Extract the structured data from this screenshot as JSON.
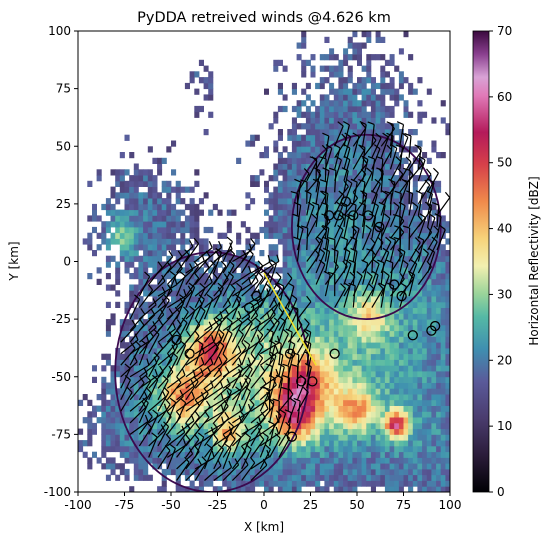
{
  "chart_data": {
    "type": "heatmap",
    "title": "PyDDA retreived winds @4.626 km",
    "xlabel": "X [km]",
    "ylabel": "Y [km]",
    "xlim": [
      -100,
      100
    ],
    "ylim": [
      -100,
      100
    ],
    "x_ticks": [
      -100,
      -75,
      -50,
      -25,
      0,
      25,
      50,
      75,
      100
    ],
    "y_ticks": [
      -100,
      -75,
      -50,
      -25,
      0,
      25,
      50,
      75,
      100
    ],
    "colorbar": {
      "label": "Horizontal Reflectivity [dBZ]",
      "range": [
        0,
        70
      ],
      "ticks": [
        0,
        10,
        20,
        30,
        40,
        50,
        60,
        70
      ],
      "colormap": "Spectral_r-like (black to purple, teal, yellow, red, magenta, dark purple)"
    },
    "overlays": {
      "dual_doppler_lobes_color": "#3b0a4f",
      "lobes": [
        {
          "center": [
            55,
            15
          ],
          "radius": 40
        },
        {
          "center": [
            -28,
            -48
          ],
          "radius": 52
        }
      ],
      "baseline_color": "#f2e12a",
      "baseline": [
        [
          0,
          -5
        ],
        [
          28,
          -45
        ]
      ],
      "barbs_color": "#000000",
      "calm_markers": [
        [
          44,
          26
        ],
        [
          48,
          20
        ],
        [
          40,
          20
        ],
        [
          35,
          20
        ],
        [
          56,
          20
        ],
        [
          62,
          15
        ],
        [
          70,
          -10
        ],
        [
          74,
          -15
        ],
        [
          90,
          -30
        ],
        [
          92,
          -28
        ],
        [
          80,
          -32
        ],
        [
          -47,
          -34
        ],
        [
          -40,
          -40
        ],
        [
          14,
          -40
        ],
        [
          38,
          -40
        ],
        [
          -8,
          -20
        ],
        [
          -4,
          -15
        ],
        [
          20,
          -52
        ],
        [
          26,
          -52
        ],
        [
          15,
          -76
        ]
      ]
    },
    "grid": false,
    "legend": "none"
  }
}
